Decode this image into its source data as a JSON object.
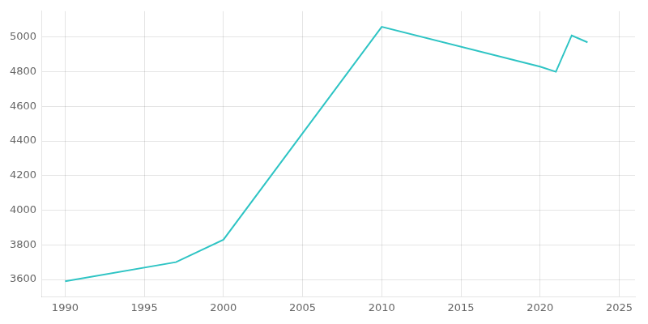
{
  "chart_data": {
    "type": "line",
    "x": [
      1990,
      1997,
      2000,
      2010,
      2020,
      2021,
      2022,
      2023
    ],
    "values": [
      3590,
      3700,
      3830,
      5060,
      4830,
      4800,
      5010,
      4970
    ],
    "color": "#2ec4c4",
    "xlim": [
      1988.5,
      2026
    ],
    "ylim": [
      3500,
      5150
    ],
    "xticks": [
      1990,
      1995,
      2000,
      2005,
      2010,
      2015,
      2020,
      2025
    ],
    "yticks": [
      3600,
      3800,
      4000,
      4200,
      4400,
      4600,
      4800,
      5000
    ],
    "grid": true
  }
}
